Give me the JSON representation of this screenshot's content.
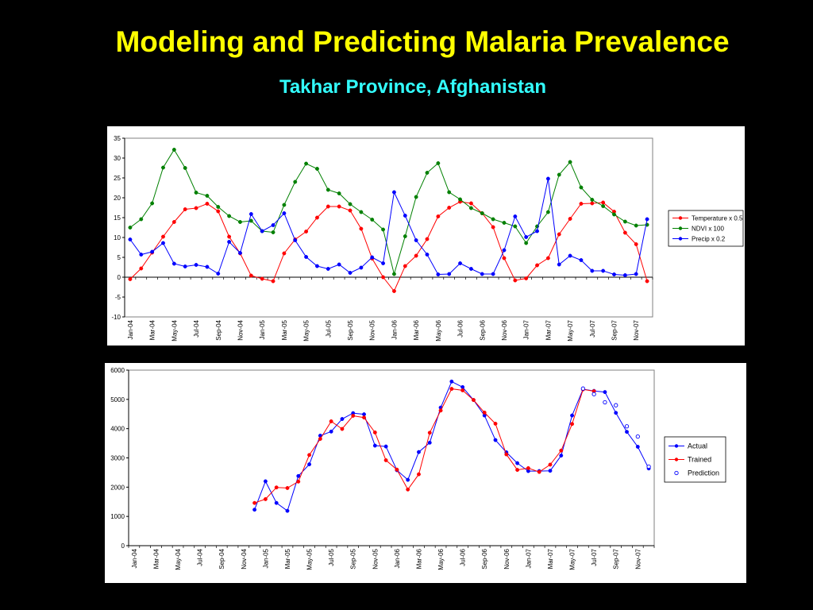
{
  "slide": {
    "title": "Modeling and Predicting Malaria Prevalence",
    "subtitle": "Takhar Province, Afghanistan",
    "title_color": "#FFFF00",
    "subtitle_color": "#33FFFF"
  },
  "chart_data": [
    {
      "type": "line",
      "title": "",
      "xlabel": "",
      "ylabel": "",
      "ylim": [
        -10,
        35
      ],
      "yticks": [
        -10,
        -5,
        0,
        5,
        10,
        15,
        20,
        25,
        30,
        35
      ],
      "grid": false,
      "legend_position": "right",
      "x_tick_labels": [
        "Jan-04",
        "Mar-04",
        "May-04",
        "Jul-04",
        "Sep-04",
        "Nov-04",
        "Jan-05",
        "Mar-05",
        "May-05",
        "Jul-05",
        "Sep-05",
        "Nov-05",
        "Jan-06",
        "Mar-06",
        "May-06",
        "Jul-06",
        "Sep-06",
        "Nov-06",
        "Jan-07",
        "Mar-07",
        "May-07",
        "Jul-07",
        "Sep-07",
        "Nov-07"
      ],
      "categories": [
        "Jan-04",
        "Feb-04",
        "Mar-04",
        "Apr-04",
        "May-04",
        "Jun-04",
        "Jul-04",
        "Aug-04",
        "Sep-04",
        "Oct-04",
        "Nov-04",
        "Dec-04",
        "Jan-05",
        "Feb-05",
        "Mar-05",
        "Apr-05",
        "May-05",
        "Jun-05",
        "Jul-05",
        "Aug-05",
        "Sep-05",
        "Oct-05",
        "Nov-05",
        "Dec-05",
        "Jan-06",
        "Feb-06",
        "Mar-06",
        "Apr-06",
        "May-06",
        "Jun-06",
        "Jul-06",
        "Aug-06",
        "Sep-06",
        "Oct-06",
        "Nov-06",
        "Dec-06",
        "Jan-07",
        "Feb-07",
        "Mar-07",
        "Apr-07",
        "May-07",
        "Jun-07",
        "Jul-07",
        "Aug-07",
        "Sep-07",
        "Oct-07",
        "Nov-07",
        "Dec-07"
      ],
      "series": [
        {
          "name": "Temperature x 0.5",
          "color": "#FF0000",
          "marker": "filled",
          "values": [
            -0.5,
            2.2,
            6.2,
            10.2,
            13.9,
            17.1,
            17.4,
            18.5,
            16.6,
            10.2,
            6.0,
            0.4,
            -0.4,
            -1.0,
            6.0,
            9.5,
            11.5,
            15.0,
            17.8,
            17.8,
            16.8,
            12.2,
            4.7,
            0.0,
            -3.5,
            2.8,
            5.4,
            9.6,
            15.3,
            17.5,
            19.0,
            18.6,
            16.1,
            12.6,
            4.8,
            -0.8,
            -0.3,
            3.0,
            4.8,
            10.8,
            14.7,
            18.5,
            18.6,
            18.8,
            16.5,
            11.2,
            8.3,
            -1.0
          ]
        },
        {
          "name": "NDVI x 100",
          "color": "#008000",
          "marker": "filled",
          "values": [
            12.5,
            14.6,
            18.6,
            27.6,
            32.1,
            27.5,
            21.3,
            20.5,
            17.7,
            15.4,
            13.9,
            14.2,
            11.6,
            11.3,
            18.2,
            24.0,
            28.6,
            27.3,
            22.0,
            21.1,
            18.4,
            16.4,
            14.5,
            12.0,
            0.8,
            10.3,
            20.2,
            26.3,
            28.7,
            21.4,
            19.6,
            17.4,
            16.1,
            14.6,
            13.7,
            12.8,
            8.6,
            12.8,
            16.4,
            25.8,
            29.0,
            22.6,
            19.5,
            17.9,
            15.8,
            14.0,
            13.0,
            13.2
          ]
        },
        {
          "name": "Precip x 0.2",
          "color": "#0000FF",
          "marker": "filled",
          "values": [
            9.5,
            5.7,
            6.4,
            8.6,
            3.4,
            2.7,
            3.1,
            2.6,
            0.9,
            8.9,
            6.1,
            15.9,
            11.6,
            13.1,
            16.1,
            9.3,
            5.1,
            2.8,
            2.1,
            3.2,
            1.1,
            2.4,
            5.0,
            3.5,
            21.4,
            15.5,
            9.3,
            5.7,
            0.7,
            0.8,
            3.5,
            2.1,
            0.8,
            0.8,
            6.8,
            15.3,
            10.1,
            11.6,
            24.8,
            3.2,
            5.4,
            4.3,
            1.6,
            1.6,
            0.7,
            0.5,
            0.8,
            14.6
          ]
        }
      ]
    },
    {
      "type": "line",
      "title": "",
      "xlabel": "",
      "ylabel": "",
      "ylim": [
        0,
        6000
      ],
      "yticks": [
        0,
        1000,
        2000,
        3000,
        4000,
        5000,
        6000
      ],
      "grid": false,
      "legend_position": "right",
      "x_tick_labels": [
        "Jan-04",
        "Mar-04",
        "May-04",
        "Jul-04",
        "Sep-04",
        "Nov-04",
        "Jan-05",
        "Mar-05",
        "May-05",
        "Jul-05",
        "Sep-05",
        "Nov-05",
        "Jan-06",
        "Mar-06",
        "May-06",
        "Jul-06",
        "Sep-06",
        "Nov-06",
        "Jan-07",
        "Mar-07",
        "May-07",
        "Jul-07",
        "Sep-07",
        "Nov-07"
      ],
      "series": [
        {
          "name": "Actual",
          "color": "#0000FF",
          "marker": "filled",
          "start_index": 11,
          "values": [
            1230,
            2200,
            1460,
            1190,
            2380,
            2780,
            3760,
            3900,
            4330,
            4530,
            4490,
            3420,
            3390,
            2580,
            2250,
            3200,
            3520,
            4720,
            5610,
            5420,
            4980,
            4450,
            3610,
            3190,
            2820,
            2550,
            2550,
            2560,
            3080,
            4450,
            5350,
            5290,
            5250,
            4540,
            3890,
            3380,
            2640
          ]
        },
        {
          "name": "Trained",
          "color": "#FF0000",
          "marker": "filled",
          "start_index": 11,
          "values": [
            1460,
            1590,
            1990,
            1970,
            2190,
            3100,
            3650,
            4250,
            3990,
            4440,
            4380,
            3870,
            2920,
            2600,
            1920,
            2440,
            3860,
            4620,
            5360,
            5310,
            4980,
            4550,
            4170,
            3120,
            2590,
            2650,
            2520,
            2770,
            3250,
            4160,
            5340,
            5280
          ]
        },
        {
          "name": "Prediction",
          "color": "#0000FF",
          "marker": "hollow",
          "start_index": 41,
          "values": [
            5370,
            5180,
            4900,
            4800,
            4080,
            3730,
            2700
          ]
        }
      ]
    }
  ]
}
